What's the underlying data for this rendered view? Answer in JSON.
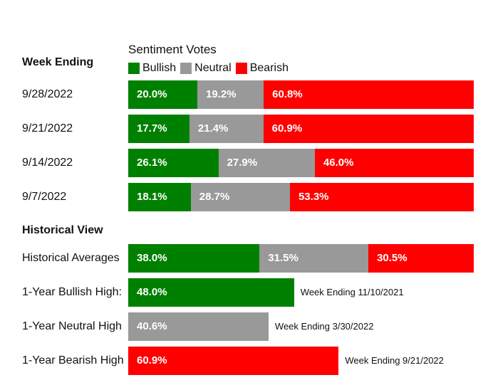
{
  "legend": {
    "title": "Sentiment Votes",
    "items": [
      {
        "name": "Bullish",
        "color": "#008000"
      },
      {
        "name": "Neutral",
        "color": "#999999"
      },
      {
        "name": "Bearish",
        "color": "#ff0000"
      }
    ]
  },
  "weekly_heading": "Week Ending",
  "historical_heading": "Historical View",
  "chart_data": [
    {
      "type": "bar",
      "orientation": "horizontal",
      "stacked": true,
      "categories": [
        "9/28/2022",
        "9/21/2022",
        "9/14/2022",
        "9/7/2022"
      ],
      "series": [
        {
          "name": "Bullish",
          "values": [
            20.0,
            17.7,
            26.1,
            18.1
          ],
          "labels": [
            "20.0%",
            "17.7%",
            "26.1%",
            "18.1%"
          ],
          "color": "#008000"
        },
        {
          "name": "Neutral",
          "values": [
            19.2,
            21.4,
            27.9,
            28.7
          ],
          "labels": [
            "19.2%",
            "21.4%",
            "27.9%",
            "28.7%"
          ],
          "color": "#999999"
        },
        {
          "name": "Bearish",
          "values": [
            60.8,
            60.9,
            46.0,
            53.3
          ],
          "labels": [
            "60.8%",
            "60.9%",
            "46.0%",
            "53.3%"
          ],
          "color": "#ff0000"
        }
      ],
      "xlim": [
        0,
        100
      ],
      "legend_position": "top"
    },
    {
      "type": "bar",
      "orientation": "horizontal",
      "stacked": true,
      "categories": [
        "Historical Averages"
      ],
      "series": [
        {
          "name": "Bullish",
          "values": [
            38.0
          ],
          "labels": [
            "38.0%"
          ],
          "color": "#008000"
        },
        {
          "name": "Neutral",
          "values": [
            31.5
          ],
          "labels": [
            "31.5%"
          ],
          "color": "#999999"
        },
        {
          "name": "Bearish",
          "values": [
            30.5
          ],
          "labels": [
            "30.5%"
          ],
          "color": "#ff0000"
        }
      ],
      "xlim": [
        0,
        100
      ]
    },
    {
      "type": "bar",
      "orientation": "horizontal",
      "categories": [
        "1-Year Bullish High:",
        "1-Year Neutral High",
        "1-Year Bearish High"
      ],
      "values": [
        48.0,
        40.6,
        60.9
      ],
      "labels": [
        "48.0%",
        "40.6%",
        "60.9%"
      ],
      "colors": [
        "#008000",
        "#999999",
        "#ff0000"
      ],
      "annotations": [
        "Week Ending 11/10/2021",
        "Week Ending 3/30/2022",
        "Week Ending 9/21/2022"
      ],
      "xlim": [
        0,
        100
      ]
    }
  ]
}
